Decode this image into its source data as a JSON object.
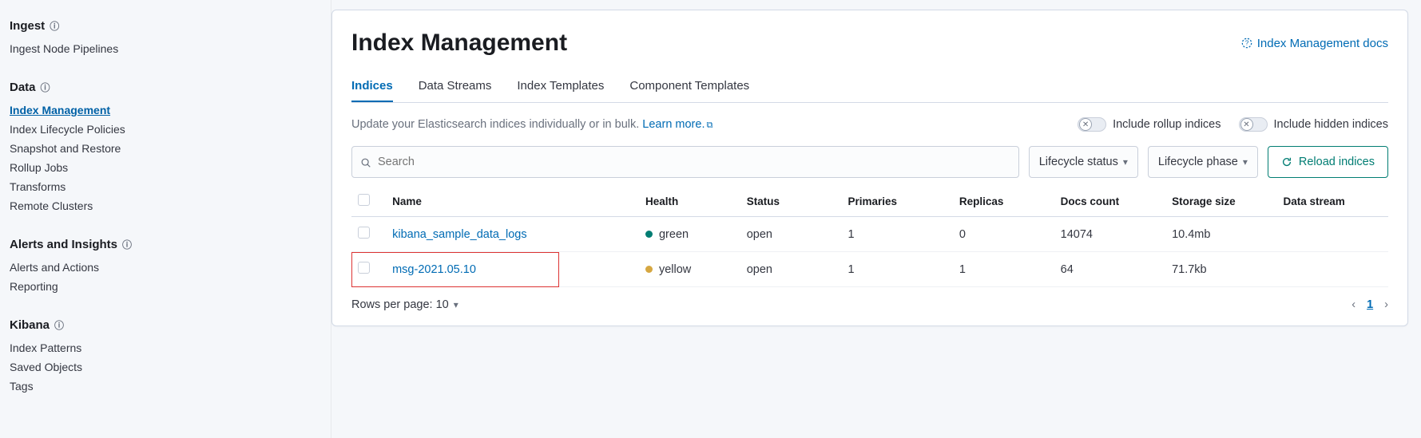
{
  "sidebar": {
    "sections": [
      {
        "title": "Ingest",
        "items": [
          {
            "label": "Ingest Node Pipelines",
            "active": false
          }
        ]
      },
      {
        "title": "Data",
        "items": [
          {
            "label": "Index Management",
            "active": true
          },
          {
            "label": "Index Lifecycle Policies",
            "active": false
          },
          {
            "label": "Snapshot and Restore",
            "active": false
          },
          {
            "label": "Rollup Jobs",
            "active": false
          },
          {
            "label": "Transforms",
            "active": false
          },
          {
            "label": "Remote Clusters",
            "active": false
          }
        ]
      },
      {
        "title": "Alerts and Insights",
        "items": [
          {
            "label": "Alerts and Actions",
            "active": false
          },
          {
            "label": "Reporting",
            "active": false
          }
        ]
      },
      {
        "title": "Kibana",
        "items": [
          {
            "label": "Index Patterns",
            "active": false
          },
          {
            "label": "Saved Objects",
            "active": false
          },
          {
            "label": "Tags",
            "active": false
          }
        ]
      }
    ]
  },
  "header": {
    "title": "Index Management",
    "docs_link": "Index Management docs"
  },
  "tabs": [
    {
      "label": "Indices",
      "active": true
    },
    {
      "label": "Data Streams",
      "active": false
    },
    {
      "label": "Index Templates",
      "active": false
    },
    {
      "label": "Component Templates",
      "active": false
    }
  ],
  "description": {
    "text": "Update your Elasticsearch indices individually or in bulk. ",
    "link_text": "Learn more."
  },
  "toggles": {
    "rollup_label": "Include rollup indices",
    "hidden_label": "Include hidden indices"
  },
  "controls": {
    "search_placeholder": "Search",
    "lifecycle_status_label": "Lifecycle status",
    "lifecycle_phase_label": "Lifecycle phase",
    "reload_label": "Reload indices"
  },
  "table": {
    "columns": [
      "Name",
      "Health",
      "Status",
      "Primaries",
      "Replicas",
      "Docs count",
      "Storage size",
      "Data stream"
    ],
    "rows": [
      {
        "name": "kibana_sample_data_logs",
        "health": "green",
        "health_color": "#017d73",
        "status": "open",
        "primaries": "1",
        "replicas": "0",
        "docs": "14074",
        "storage": "10.4mb",
        "stream": "",
        "hl": false
      },
      {
        "name": "msg-2021.05.10",
        "health": "yellow",
        "health_color": "#d6a741",
        "status": "open",
        "primaries": "1",
        "replicas": "1",
        "docs": "64",
        "storage": "71.7kb",
        "stream": "",
        "hl": true
      }
    ]
  },
  "footer": {
    "rows_per_page_label": "Rows per page: 10",
    "current_page": "1"
  },
  "colors": {
    "link": "#006bb4",
    "accent_green": "#017d73",
    "border": "#d3dae6",
    "highlight_border": "#d33"
  }
}
